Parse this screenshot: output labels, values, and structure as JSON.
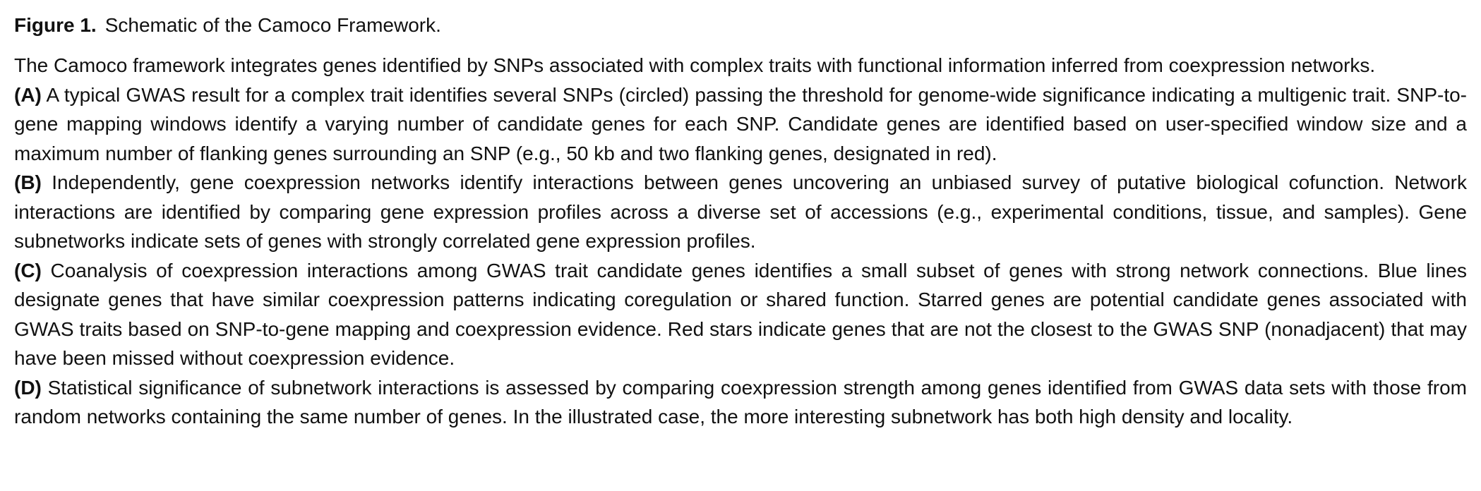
{
  "figure": {
    "label": "Figure 1.",
    "title": "Schematic of the Camoco Framework."
  },
  "intro": "The Camoco framework integrates genes identified by SNPs associated with complex traits with functional information inferred from coexpression networks.",
  "panels": [
    {
      "label": "(A)",
      "text": "A typical GWAS result for a complex trait identifies several SNPs (circled) passing the threshold for genome-wide significance indicating a multigenic trait. SNP-to-gene mapping windows identify a varying number of candidate genes for each SNP. Candidate genes are identified based on user-specified window size and a maximum number of flanking genes surrounding an SNP (e.g., 50 kb and two flanking genes, designated in red)."
    },
    {
      "label": "(B)",
      "text": "Independently, gene coexpression networks identify interactions between genes uncovering an unbiased survey of putative biological cofunction. Network interactions are identified by comparing gene expression profiles across a diverse set of accessions (e.g., experimental conditions, tissue, and samples). Gene subnetworks indicate sets of genes with strongly correlated gene expression profiles."
    },
    {
      "label": "(C)",
      "text": "Coanalysis of coexpression interactions among GWAS trait candidate genes identifies a small subset of genes with strong network connections. Blue lines designate genes that have similar coexpression patterns indicating coregulation or shared function. Starred genes are potential candidate genes associated with GWAS traits based on SNP-to-gene mapping and coexpression evidence. Red stars indicate genes that are not the closest to the GWAS SNP (nonadjacent) that may have been missed without coexpression evidence."
    },
    {
      "label": "(D)",
      "text": "Statistical significance of subnetwork interactions is assessed by comparing coexpression strength among genes identified from GWAS data sets with those from random networks containing the same number of genes. In the illustrated case, the more interesting subnetwork has both high density and locality."
    }
  ]
}
